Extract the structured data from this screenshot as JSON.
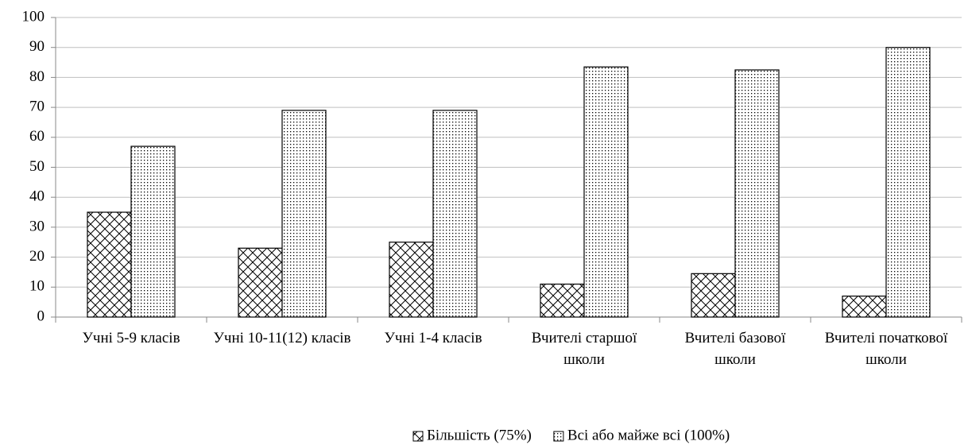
{
  "chart_data": {
    "type": "bar",
    "categories": [
      "Учні 5-9 класів",
      "Учні 10-11(12) класів",
      "Учні 1-4 класів",
      "Вчителі старшої школи",
      "Вчителі базової школи",
      "Вчителі початкової школи"
    ],
    "series": [
      {
        "name": "Більшість (75%)",
        "color": "#000000",
        "pattern": "crosshatch",
        "values": [
          35,
          23,
          25,
          11,
          14.5,
          7
        ]
      },
      {
        "name": "Всі або майже всі (100%)",
        "color": "#000000",
        "pattern": "dots",
        "values": [
          57,
          69,
          69,
          83.5,
          82.5,
          90
        ]
      }
    ],
    "ylim": [
      0,
      100
    ],
    "yticks": [
      0,
      10,
      20,
      30,
      40,
      50,
      60,
      70,
      80,
      90,
      100
    ],
    "grid": true,
    "legend": "bottom"
  }
}
